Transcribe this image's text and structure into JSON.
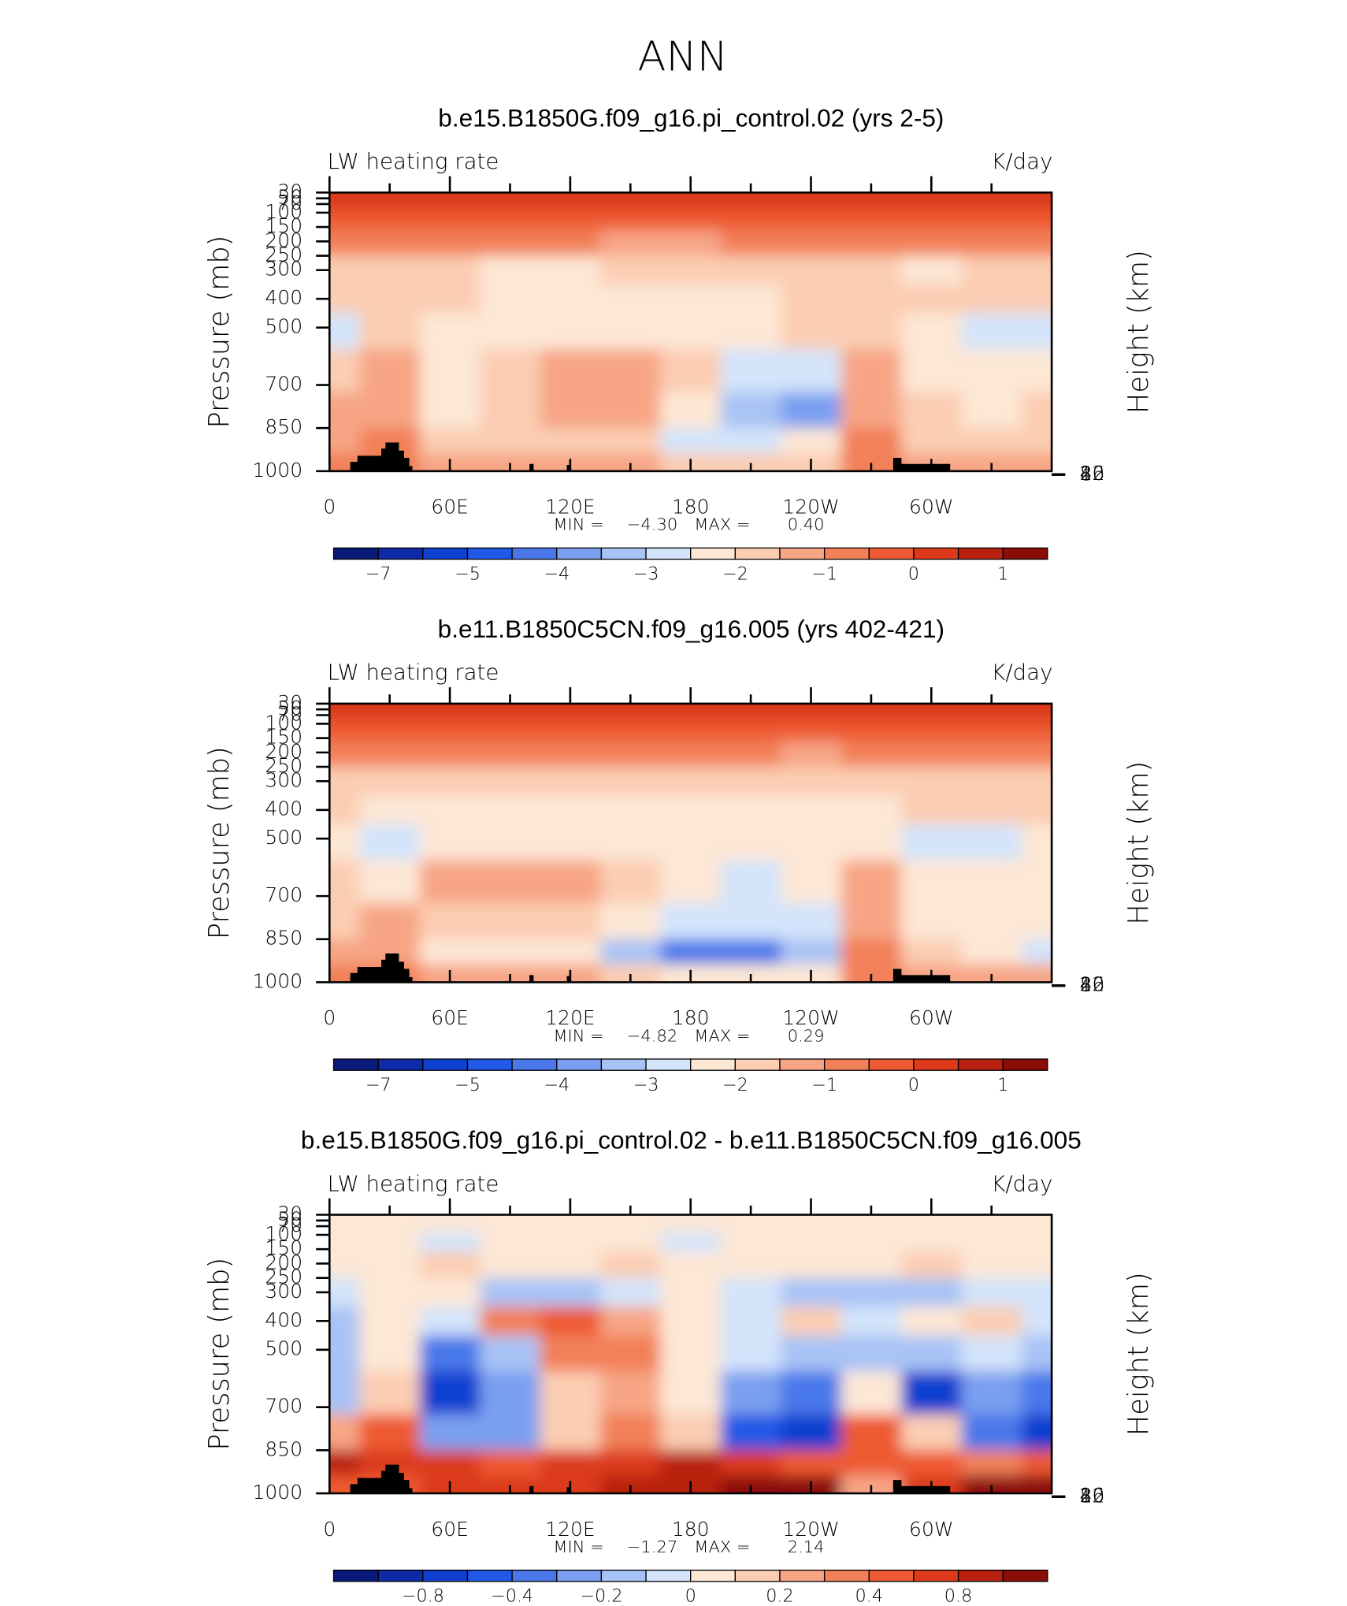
{
  "title": "ANN",
  "chart_data": [
    {
      "type": "contour",
      "title": "b.e15.B1850G.f09_g16.pi_control.02 (yrs 2-5)",
      "left_label": "LW heating rate",
      "right_label": "K/day",
      "y_label": "Pressure (mb)",
      "y2_label": "Height (km)",
      "xlim": [
        0,
        360
      ],
      "xticks": [
        0,
        {
          "value": 60,
          "label": "60E"
        },
        {
          "value": 120,
          "label": "120E"
        },
        180,
        {
          "value": 240,
          "label": "120W"
        },
        {
          "value": 300,
          "label": "60W"
        }
      ],
      "xminor_ticks": [
        30,
        90,
        150,
        210,
        270,
        330
      ],
      "ylim": [
        1000,
        30
      ],
      "yticks": [
        30,
        50,
        70,
        100,
        150,
        200,
        250,
        300,
        400,
        500,
        700,
        850,
        1000
      ],
      "y2lim": [
        0.1,
        21.6
      ],
      "y2ticks": [
        20,
        16,
        12,
        8,
        4
      ],
      "stats": {
        "names": [
          "MIN =",
          "MAX ="
        ],
        "values": [
          -4.3,
          0.4
        ],
        "value_labels": [
          "−4.30",
          "0.40"
        ]
      },
      "lon": [
        0,
        30,
        60,
        90,
        120,
        150,
        180,
        210,
        240,
        270,
        300,
        330,
        360
      ],
      "pressure": [
        60,
        120,
        200,
        300,
        400,
        500,
        650,
        800,
        900,
        975
      ],
      "z": [
        [
          0.2,
          0.2,
          0.2,
          0.2,
          0.2,
          0.2,
          0.2,
          0.2,
          0.2,
          0.2,
          0.2,
          0.2,
          0.2
        ],
        [
          -0.3,
          -0.3,
          -0.3,
          -0.3,
          -0.3,
          -0.3,
          -0.3,
          -0.3,
          -0.3,
          -0.3,
          -0.3,
          -0.3,
          -0.3
        ],
        [
          -0.8,
          -0.8,
          -0.8,
          -0.8,
          -0.8,
          -1.2,
          -1.2,
          -0.8,
          -0.8,
          -0.8,
          -0.8,
          -0.8,
          -0.8
        ],
        [
          -1.7,
          -1.7,
          -1.7,
          -2.2,
          -2.2,
          -1.7,
          -1.7,
          -1.7,
          -1.7,
          -1.7,
          -2.2,
          -1.7,
          -1.7
        ],
        [
          -1.7,
          -1.7,
          -1.7,
          -2.2,
          -2.2,
          -2.2,
          -2.2,
          -2.2,
          -1.7,
          -1.7,
          -1.7,
          -1.7,
          -1.7
        ],
        [
          -2.7,
          -1.8,
          -2.2,
          -2.2,
          -2.2,
          -2.2,
          -2.2,
          -2.2,
          -1.8,
          -1.8,
          -2.2,
          -2.7,
          -2.7
        ],
        [
          -1.7,
          -1.3,
          -2.2,
          -1.7,
          -1.3,
          -1.2,
          -1.7,
          -2.7,
          -2.7,
          -1.3,
          -2.2,
          -2.2,
          -2.2
        ],
        [
          -1.3,
          -1.0,
          -2.2,
          -1.7,
          -1.3,
          -1.3,
          -2.2,
          -3.2,
          -3.8,
          -1.2,
          -1.7,
          -2.2,
          -1.7
        ],
        [
          -1.2,
          -0.8,
          -1.7,
          -1.7,
          -1.7,
          -1.7,
          -2.7,
          -2.7,
          -2.2,
          -0.8,
          -1.5,
          -1.7,
          -1.7
        ],
        [
          -0.8,
          -0.6,
          -1.3,
          -1.2,
          -1.2,
          -1.3,
          -1.7,
          -1.7,
          -1.7,
          -0.7,
          -1.2,
          -1.3,
          -1.2
        ]
      ],
      "colorbar": {
        "colors": [
          "#0a1a78",
          "#0d2ba8",
          "#1040d0",
          "#2258e6",
          "#4a78ea",
          "#7a9ff0",
          "#a8c3f5",
          "#d3e4fb",
          "#fde7d5",
          "#fbcdb2",
          "#f7a585",
          "#f28059",
          "#ee5a33",
          "#dc3a1a",
          "#b8200f",
          "#8a0d08"
        ],
        "ticks": [
          {
            "value": -7,
            "label": "−7"
          },
          {
            "value": -6,
            "label": null
          },
          {
            "value": -5,
            "label": "−5"
          },
          {
            "value": -4.5,
            "label": null
          },
          {
            "value": -4,
            "label": "−4"
          },
          {
            "value": -3.5,
            "label": null
          },
          {
            "value": -3,
            "label": "−3"
          },
          {
            "value": -2.5,
            "label": null
          },
          {
            "value": -2,
            "label": "−2"
          },
          {
            "value": -1.5,
            "label": null
          },
          {
            "value": -1,
            "label": "−1"
          },
          {
            "value": -0.5,
            "label": null
          },
          0,
          {
            "value": 0.5,
            "label": null
          },
          1
        ]
      }
    },
    {
      "type": "contour",
      "title": "b.e11.B1850C5CN.f09_g16.005 (yrs 402-421)",
      "left_label": "LW heating rate",
      "right_label": "K/day",
      "y_label": "Pressure (mb)",
      "y2_label": "Height (km)",
      "xlim": [
        0,
        360
      ],
      "xticks": [
        0,
        {
          "value": 60,
          "label": "60E"
        },
        {
          "value": 120,
          "label": "120E"
        },
        180,
        {
          "value": 240,
          "label": "120W"
        },
        {
          "value": 300,
          "label": "60W"
        }
      ],
      "xminor_ticks": [
        30,
        90,
        150,
        210,
        270,
        330
      ],
      "ylim": [
        1000,
        30
      ],
      "yticks": [
        30,
        50,
        70,
        100,
        150,
        200,
        250,
        300,
        400,
        500,
        700,
        850,
        1000
      ],
      "y2lim": [
        0.1,
        21.6
      ],
      "y2ticks": [
        20,
        16,
        12,
        8,
        4
      ],
      "stats": {
        "names": [
          "MIN =",
          "MAX ="
        ],
        "values": [
          -4.82,
          0.29
        ],
        "value_labels": [
          "−4.82",
          "0.29"
        ]
      },
      "lon": [
        0,
        30,
        60,
        90,
        120,
        150,
        180,
        210,
        240,
        270,
        300,
        330,
        360
      ],
      "pressure": [
        60,
        120,
        200,
        300,
        400,
        500,
        650,
        800,
        900,
        975
      ],
      "z": [
        [
          0.2,
          0.2,
          0.2,
          0.2,
          0.2,
          0.2,
          0.2,
          0.2,
          0.2,
          0.2,
          0.2,
          0.2,
          0.2
        ],
        [
          -0.3,
          -0.3,
          -0.3,
          -0.3,
          -0.3,
          -0.3,
          -0.3,
          -0.3,
          -0.3,
          -0.3,
          -0.3,
          -0.3,
          -0.3
        ],
        [
          -0.8,
          -0.8,
          -0.8,
          -0.8,
          -0.8,
          -0.8,
          -0.8,
          -0.8,
          -1.2,
          -0.8,
          -0.8,
          -0.8,
          -0.8
        ],
        [
          -1.7,
          -1.7,
          -1.7,
          -1.7,
          -1.7,
          -1.7,
          -1.7,
          -1.7,
          -1.7,
          -1.7,
          -1.7,
          -1.7,
          -1.7
        ],
        [
          -1.7,
          -2.2,
          -2.2,
          -2.2,
          -2.2,
          -2.2,
          -2.2,
          -2.2,
          -2.2,
          -2.2,
          -1.7,
          -1.7,
          -1.7
        ],
        [
          -2.2,
          -2.7,
          -2.2,
          -2.2,
          -2.2,
          -2.2,
          -2.2,
          -2.2,
          -2.2,
          -2.2,
          -2.7,
          -2.7,
          -2.2
        ],
        [
          -1.7,
          -2.2,
          -1.3,
          -1.3,
          -1.3,
          -1.7,
          -2.2,
          -2.7,
          -2.2,
          -1.3,
          -2.2,
          -2.2,
          -2.2
        ],
        [
          -1.7,
          -1.3,
          -1.7,
          -1.7,
          -1.7,
          -2.2,
          -2.7,
          -2.7,
          -2.7,
          -1.3,
          -2.2,
          -2.2,
          -2.2
        ],
        [
          -1.3,
          -1.0,
          -2.2,
          -2.2,
          -2.2,
          -3.2,
          -4.3,
          -4.0,
          -3.2,
          -0.8,
          -1.7,
          -2.2,
          -2.7
        ],
        [
          -0.5,
          -0.6,
          -1.3,
          -1.3,
          -1.2,
          -1.7,
          -2.2,
          -2.2,
          -2.2,
          -0.6,
          -1.2,
          -1.3,
          -1.3
        ]
      ],
      "colorbar": {
        "colors": [
          "#0a1a78",
          "#0d2ba8",
          "#1040d0",
          "#2258e6",
          "#4a78ea",
          "#7a9ff0",
          "#a8c3f5",
          "#d3e4fb",
          "#fde7d5",
          "#fbcdb2",
          "#f7a585",
          "#f28059",
          "#ee5a33",
          "#dc3a1a",
          "#b8200f",
          "#8a0d08"
        ],
        "ticks": [
          {
            "value": -7,
            "label": "−7"
          },
          {
            "value": -6,
            "label": null
          },
          {
            "value": -5,
            "label": "−5"
          },
          {
            "value": -4.5,
            "label": null
          },
          {
            "value": -4,
            "label": "−4"
          },
          {
            "value": -3.5,
            "label": null
          },
          {
            "value": -3,
            "label": "−3"
          },
          {
            "value": -2.5,
            "label": null
          },
          {
            "value": -2,
            "label": "−2"
          },
          {
            "value": -1.5,
            "label": null
          },
          {
            "value": -1,
            "label": "−1"
          },
          {
            "value": -0.5,
            "label": null
          },
          0,
          {
            "value": 0.5,
            "label": null
          },
          1
        ]
      }
    },
    {
      "type": "contour",
      "title": "b.e15.B1850G.f09_g16.pi_control.02 - b.e11.B1850C5CN.f09_g16.005",
      "left_label": "LW heating rate",
      "right_label": "K/day",
      "y_label": "Pressure (mb)",
      "y2_label": "Height (km)",
      "xlim": [
        0,
        360
      ],
      "xticks": [
        0,
        {
          "value": 60,
          "label": "60E"
        },
        {
          "value": 120,
          "label": "120E"
        },
        180,
        {
          "value": 240,
          "label": "120W"
        },
        {
          "value": 300,
          "label": "60W"
        }
      ],
      "xminor_ticks": [
        30,
        90,
        150,
        210,
        270,
        330
      ],
      "ylim": [
        1000,
        30
      ],
      "yticks": [
        30,
        50,
        70,
        100,
        150,
        200,
        250,
        300,
        400,
        500,
        700,
        850,
        1000
      ],
      "y2lim": [
        0.1,
        21.6
      ],
      "y2ticks": [
        20,
        16,
        12,
        8,
        4
      ],
      "stats": {
        "names": [
          "MIN =",
          "MAX ="
        ],
        "values": [
          -1.27,
          2.14
        ],
        "value_labels": [
          "−1.27",
          "2.14"
        ]
      },
      "lon": [
        0,
        30,
        60,
        90,
        120,
        150,
        180,
        210,
        240,
        270,
        300,
        330,
        360
      ],
      "pressure": [
        60,
        120,
        200,
        300,
        400,
        500,
        650,
        800,
        900,
        975
      ],
      "z": [
        [
          0.05,
          0.05,
          0.05,
          0.05,
          0.05,
          0.05,
          0.05,
          0.05,
          0.05,
          0.05,
          0.05,
          0.05,
          0.05
        ],
        [
          0.05,
          0.05,
          -0.05,
          0.05,
          0.05,
          0.05,
          -0.05,
          0.05,
          0.05,
          0.05,
          0.05,
          0.05,
          0.05
        ],
        [
          0.05,
          0.05,
          0.15,
          0.05,
          0.05,
          0.15,
          0.05,
          0.05,
          0.05,
          0.05,
          0.15,
          0.05,
          0.05
        ],
        [
          -0.05,
          0.05,
          0.05,
          -0.15,
          -0.15,
          -0.05,
          0.05,
          -0.05,
          -0.15,
          -0.15,
          -0.15,
          -0.05,
          -0.05
        ],
        [
          -0.15,
          0.05,
          -0.05,
          0.35,
          0.5,
          0.25,
          0.05,
          -0.05,
          0.15,
          -0.05,
          0.05,
          0.15,
          -0.05
        ],
        [
          -0.15,
          0.05,
          -0.35,
          -0.15,
          0.35,
          0.35,
          0.05,
          -0.05,
          -0.15,
          -0.15,
          -0.15,
          -0.05,
          -0.15
        ],
        [
          -0.15,
          0.15,
          -0.7,
          -0.25,
          0.15,
          0.3,
          0.1,
          -0.25,
          -0.35,
          0.1,
          -0.7,
          -0.25,
          -0.35
        ],
        [
          0.3,
          0.5,
          -0.25,
          -0.25,
          0.15,
          0.35,
          0.15,
          -0.5,
          -0.7,
          0.5,
          0.15,
          -0.35,
          -0.7
        ],
        [
          0.9,
          0.7,
          0.7,
          0.6,
          0.7,
          0.8,
          0.9,
          0.7,
          0.6,
          0.5,
          0.6,
          0.4,
          0.5
        ],
        [
          0.5,
          0.5,
          0.8,
          0.8,
          0.8,
          0.9,
          0.9,
          1.1,
          1.1,
          0.3,
          0.8,
          1.1,
          1.1
        ]
      ],
      "colorbar": {
        "colors": [
          "#0a1a78",
          "#0d2ba8",
          "#1040d0",
          "#2258e6",
          "#4a78ea",
          "#7a9ff0",
          "#a8c3f5",
          "#d3e4fb",
          "#fde7d5",
          "#fbcdb2",
          "#f7a585",
          "#f28059",
          "#ee5a33",
          "#dc3a1a",
          "#b8200f",
          "#8a0d08"
        ],
        "ticks": [
          {
            "value": -1,
            "label": null
          },
          {
            "value": -0.8,
            "label": "−0.8"
          },
          {
            "value": -0.6,
            "label": null
          },
          {
            "value": -0.4,
            "label": "−0.4"
          },
          {
            "value": -0.3,
            "label": null
          },
          {
            "value": -0.2,
            "label": "−0.2"
          },
          {
            "value": -0.1,
            "label": null
          },
          0,
          {
            "value": 0.1,
            "label": null
          },
          0.2,
          {
            "value": 0.3,
            "label": null
          },
          0.4,
          {
            "value": 0.6,
            "label": null
          },
          0.8,
          {
            "value": 1,
            "label": null
          }
        ]
      }
    }
  ]
}
